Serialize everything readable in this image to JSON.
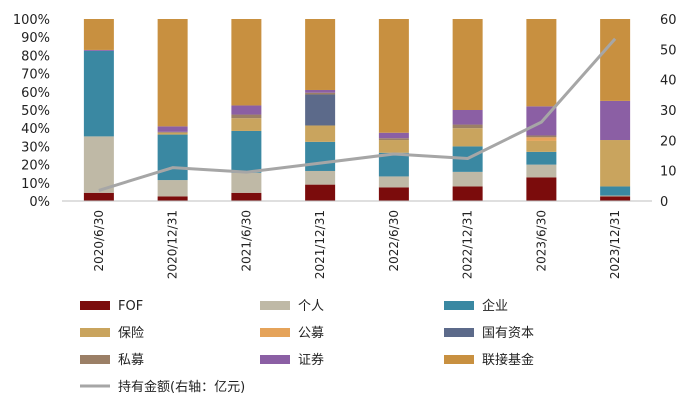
{
  "chart_data": {
    "type": "bar",
    "stacked": true,
    "percent": true,
    "categories": [
      "2020/6/30",
      "2020/12/31",
      "2021/6/30",
      "2021/12/31",
      "2022/6/30",
      "2022/12/31",
      "2023/6/30",
      "2023/12/31"
    ],
    "y_left_ticks": [
      "0%",
      "10%",
      "20%",
      "30%",
      "40%",
      "50%",
      "60%",
      "70%",
      "80%",
      "90%",
      "100%"
    ],
    "y_right_ticks": [
      "0",
      "10",
      "20",
      "30",
      "40",
      "50",
      "60"
    ],
    "ylim_left": [
      0,
      100
    ],
    "ylim_right": [
      0,
      60
    ],
    "grid": false,
    "legend_position": "bottom",
    "series": [
      {
        "name": "FOF",
        "color": "#7b0c0c",
        "values": [
          4.5,
          2.5,
          4.5,
          9,
          7.5,
          8,
          13,
          2.5
        ]
      },
      {
        "name": "个人",
        "color": "#bfb9a6",
        "values": [
          31,
          9,
          11,
          7.5,
          6,
          8,
          7,
          0.5
        ]
      },
      {
        "name": "企业",
        "color": "#3a88a2",
        "values": [
          47,
          25,
          23,
          16,
          13,
          14,
          7,
          5
        ]
      },
      {
        "name": "保险",
        "color": "#c9a45e",
        "values": [
          0,
          1,
          7,
          9,
          7,
          10,
          6,
          25.5
        ]
      },
      {
        "name": "公募",
        "color": "#e5a35a",
        "values": [
          0,
          0,
          0,
          0,
          0,
          0,
          2,
          0
        ]
      },
      {
        "name": "国有资本",
        "color": "#5c6a8a",
        "values": [
          0,
          0,
          0,
          17,
          0,
          0,
          0,
          0
        ]
      },
      {
        "name": "私募",
        "color": "#9b7f66",
        "values": [
          0,
          0.5,
          2,
          1,
          1,
          2,
          1,
          0
        ]
      },
      {
        "name": "证券",
        "color": "#8b5fa4",
        "values": [
          0.5,
          3,
          5,
          1.5,
          3,
          8,
          16,
          21.5
        ]
      },
      {
        "name": "联接基金",
        "color": "#c89040",
        "values": [
          17,
          59,
          47.5,
          39,
          62.5,
          50,
          48,
          45
        ]
      }
    ],
    "line": {
      "name": "持有金额(右轴：亿元)",
      "color": "#a6a6a6",
      "axis": "right",
      "values": [
        3.5,
        11,
        9.5,
        12.5,
        15.5,
        14,
        26,
        53.5
      ]
    }
  }
}
